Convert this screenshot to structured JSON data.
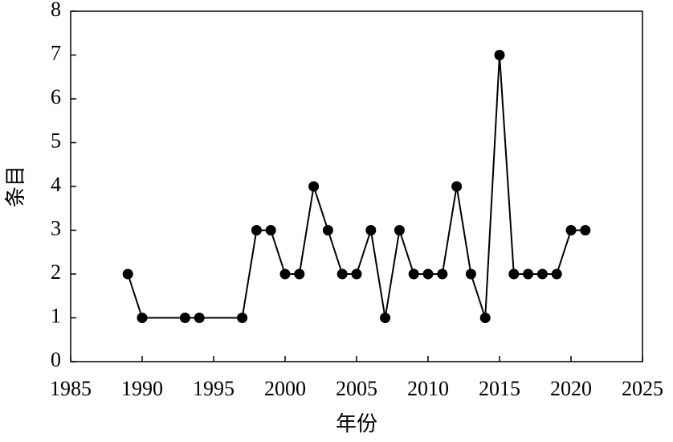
{
  "chart_data": {
    "type": "line",
    "x_label": "年份",
    "y_label": "条目",
    "x": [
      1989,
      1990,
      1993,
      1994,
      1997,
      1998,
      1999,
      2000,
      2001,
      2002,
      2003,
      2004,
      2005,
      2006,
      2007,
      2008,
      2009,
      2010,
      2011,
      2012,
      2013,
      2014,
      2015,
      2016,
      2017,
      2018,
      2019,
      2020,
      2021
    ],
    "series": [
      {
        "name": "条目",
        "color": "#000000",
        "values": [
          2,
          1,
          1,
          1,
          1,
          3,
          3,
          2,
          2,
          4,
          3,
          2,
          2,
          3,
          1,
          3,
          2,
          2,
          2,
          4,
          2,
          1,
          7,
          2,
          2,
          2,
          2,
          3,
          3
        ]
      }
    ],
    "xlim": [
      1985,
      2025
    ],
    "xticks": [
      1985,
      1990,
      1995,
      2000,
      2005,
      2010,
      2015,
      2020,
      2025
    ],
    "ylim": [
      0,
      8
    ],
    "yticks": [
      0,
      1,
      2,
      3,
      4,
      5,
      6,
      7,
      8
    ],
    "grid": false
  }
}
